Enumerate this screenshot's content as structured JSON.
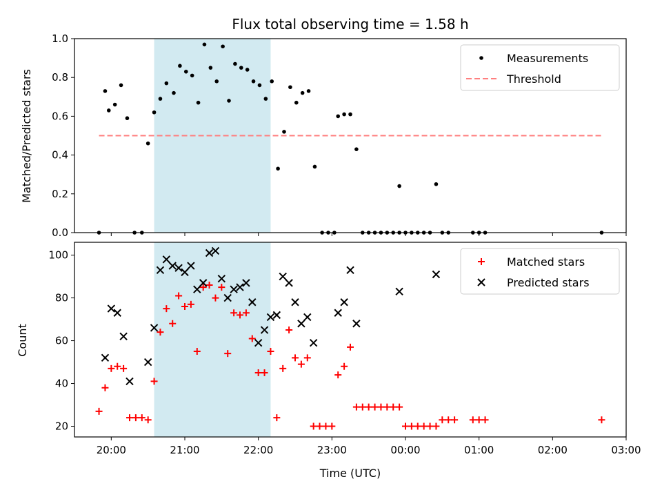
{
  "chart_data": [
    {
      "type": "scatter",
      "title": "Flux total observing time = 1.58 h",
      "xlabel": "",
      "ylabel": "Matched/Predicted stars",
      "ylim": [
        0,
        1.0
      ],
      "yticks": [
        "0.0",
        "0.2",
        "0.4",
        "0.6",
        "0.8",
        "1.0"
      ],
      "legend": "top-right",
      "highlight_window": [
        "20:35",
        "22:10"
      ],
      "highlight_color": "#add8e6",
      "series": [
        {
          "name": "Measurements",
          "kind": "scatter",
          "color": "#000000",
          "points": [
            [
              "19:50",
              0.0
            ],
            [
              "19:55",
              0.73
            ],
            [
              "19:58",
              0.63
            ],
            [
              "20:03",
              0.66
            ],
            [
              "20:08",
              0.76
            ],
            [
              "20:13",
              0.59
            ],
            [
              "20:19",
              0.0
            ],
            [
              "20:25",
              0.0
            ],
            [
              "20:30",
              0.46
            ],
            [
              "20:35",
              0.62
            ],
            [
              "20:40",
              0.69
            ],
            [
              "20:45",
              0.77
            ],
            [
              "20:51",
              0.72
            ],
            [
              "20:56",
              0.86
            ],
            [
              "21:01",
              0.83
            ],
            [
              "21:06",
              0.81
            ],
            [
              "21:11",
              0.67
            ],
            [
              "21:16",
              0.97
            ],
            [
              "21:21",
              0.85
            ],
            [
              "21:26",
              0.78
            ],
            [
              "21:31",
              0.96
            ],
            [
              "21:36",
              0.68
            ],
            [
              "21:41",
              0.87
            ],
            [
              "21:46",
              0.85
            ],
            [
              "21:51",
              0.84
            ],
            [
              "21:56",
              0.78
            ],
            [
              "22:01",
              0.76
            ],
            [
              "22:06",
              0.69
            ],
            [
              "22:11",
              0.78
            ],
            [
              "22:16",
              0.33
            ],
            [
              "22:21",
              0.52
            ],
            [
              "22:26",
              0.75
            ],
            [
              "22:31",
              0.67
            ],
            [
              "22:36",
              0.72
            ],
            [
              "22:41",
              0.73
            ],
            [
              "22:46",
              0.34
            ],
            [
              "22:52",
              0.0
            ],
            [
              "22:57",
              0.0
            ],
            [
              "23:02",
              0.0
            ],
            [
              "23:05",
              0.6
            ],
            [
              "23:10",
              0.61
            ],
            [
              "23:15",
              0.61
            ],
            [
              "23:20",
              0.43
            ],
            [
              "23:25",
              0.0
            ],
            [
              "23:30",
              0.0
            ],
            [
              "23:35",
              0.0
            ],
            [
              "23:40",
              0.0
            ],
            [
              "23:45",
              0.0
            ],
            [
              "23:50",
              0.0
            ],
            [
              "23:55",
              0.0
            ],
            [
              "23:55",
              0.24
            ],
            [
              "24:00",
              0.0
            ],
            [
              "24:05",
              0.0
            ],
            [
              "24:10",
              0.0
            ],
            [
              "24:15",
              0.0
            ],
            [
              "24:20",
              0.0
            ],
            [
              "24:25",
              0.25
            ],
            [
              "24:30",
              0.0
            ],
            [
              "24:35",
              0.0
            ],
            [
              "24:55",
              0.0
            ],
            [
              "25:00",
              0.0
            ],
            [
              "25:05",
              0.0
            ],
            [
              "26:40",
              0.0
            ]
          ]
        },
        {
          "name": "Threshold",
          "kind": "dashed-line",
          "color": "#ff7f7f",
          "points": [
            [
              "19:50",
              0.5
            ],
            [
              "26:40",
              0.5
            ]
          ]
        }
      ]
    },
    {
      "type": "scatter",
      "title": "",
      "xlabel": "Time (UTC)",
      "ylabel": "Count",
      "ylim": [
        15,
        106
      ],
      "yticks": [
        "20",
        "40",
        "60",
        "80",
        "100"
      ],
      "xticks": [
        "20:00",
        "21:00",
        "22:00",
        "23:00",
        "00:00",
        "01:00",
        "02:00",
        "03:00"
      ],
      "legend": "top-right",
      "highlight_window": [
        "20:35",
        "22:10"
      ],
      "highlight_color": "#add8e6",
      "series": [
        {
          "name": "Matched stars",
          "kind": "plus",
          "color": "#ff0000",
          "points": [
            [
              "19:50",
              27
            ],
            [
              "19:55",
              38
            ],
            [
              "20:00",
              47
            ],
            [
              "20:05",
              48
            ],
            [
              "20:10",
              47
            ],
            [
              "20:15",
              24
            ],
            [
              "20:20",
              24
            ],
            [
              "20:25",
              24
            ],
            [
              "20:30",
              23
            ],
            [
              "20:35",
              41
            ],
            [
              "20:40",
              64
            ],
            [
              "20:45",
              75
            ],
            [
              "20:50",
              68
            ],
            [
              "20:55",
              81
            ],
            [
              "21:00",
              76
            ],
            [
              "21:05",
              77
            ],
            [
              "21:10",
              55
            ],
            [
              "21:15",
              85
            ],
            [
              "21:20",
              86
            ],
            [
              "21:25",
              80
            ],
            [
              "21:30",
              85
            ],
            [
              "21:35",
              54
            ],
            [
              "21:40",
              73
            ],
            [
              "21:45",
              72
            ],
            [
              "21:50",
              73
            ],
            [
              "21:55",
              61
            ],
            [
              "22:00",
              45
            ],
            [
              "22:05",
              45
            ],
            [
              "22:10",
              55
            ],
            [
              "22:15",
              24
            ],
            [
              "22:20",
              47
            ],
            [
              "22:25",
              65
            ],
            [
              "22:30",
              52
            ],
            [
              "22:35",
              49
            ],
            [
              "22:40",
              52
            ],
            [
              "22:45",
              20
            ],
            [
              "22:50",
              20
            ],
            [
              "22:55",
              20
            ],
            [
              "23:00",
              20
            ],
            [
              "23:05",
              44
            ],
            [
              "23:10",
              48
            ],
            [
              "23:15",
              57
            ],
            [
              "23:20",
              29
            ],
            [
              "23:25",
              29
            ],
            [
              "23:30",
              29
            ],
            [
              "23:35",
              29
            ],
            [
              "23:40",
              29
            ],
            [
              "23:45",
              29
            ],
            [
              "23:50",
              29
            ],
            [
              "23:55",
              29
            ],
            [
              "24:00",
              20
            ],
            [
              "24:05",
              20
            ],
            [
              "24:10",
              20
            ],
            [
              "24:15",
              20
            ],
            [
              "24:20",
              20
            ],
            [
              "24:25",
              20
            ],
            [
              "24:30",
              23
            ],
            [
              "24:35",
              23
            ],
            [
              "24:40",
              23
            ],
            [
              "24:55",
              23
            ],
            [
              "25:00",
              23
            ],
            [
              "25:05",
              23
            ],
            [
              "26:40",
              23
            ]
          ]
        },
        {
          "name": "Predicted stars",
          "kind": "x",
          "color": "#000000",
          "points": [
            [
              "19:55",
              52
            ],
            [
              "20:00",
              75
            ],
            [
              "20:05",
              73
            ],
            [
              "20:10",
              62
            ],
            [
              "20:15",
              41
            ],
            [
              "20:30",
              50
            ],
            [
              "20:35",
              66
            ],
            [
              "20:40",
              93
            ],
            [
              "20:45",
              98
            ],
            [
              "20:50",
              95
            ],
            [
              "20:55",
              94
            ],
            [
              "21:00",
              92
            ],
            [
              "21:05",
              95
            ],
            [
              "21:10",
              84
            ],
            [
              "21:15",
              87
            ],
            [
              "21:20",
              101
            ],
            [
              "21:25",
              102
            ],
            [
              "21:30",
              89
            ],
            [
              "21:35",
              80
            ],
            [
              "21:40",
              84
            ],
            [
              "21:45",
              85
            ],
            [
              "21:50",
              87
            ],
            [
              "21:55",
              78
            ],
            [
              "22:00",
              59
            ],
            [
              "22:05",
              65
            ],
            [
              "22:10",
              71
            ],
            [
              "22:15",
              72
            ],
            [
              "22:20",
              90
            ],
            [
              "22:25",
              87
            ],
            [
              "22:30",
              78
            ],
            [
              "22:35",
              68
            ],
            [
              "22:40",
              71
            ],
            [
              "22:45",
              59
            ],
            [
              "23:05",
              73
            ],
            [
              "23:10",
              78
            ],
            [
              "23:15",
              93
            ],
            [
              "23:20",
              68
            ],
            [
              "23:55",
              83
            ],
            [
              "24:25",
              91
            ]
          ]
        }
      ]
    }
  ]
}
